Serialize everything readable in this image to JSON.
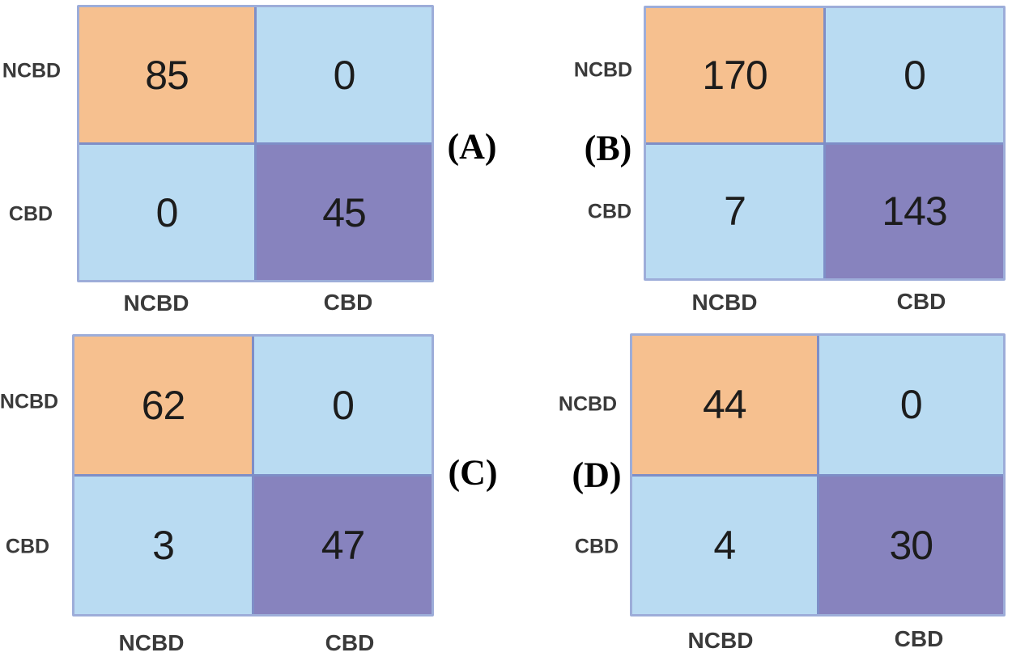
{
  "figure": {
    "colors": {
      "diagonal_top": "#f6c08f",
      "diagonal_bottom": "#8783be",
      "off_diagonal": "#b9dbf2",
      "grid_line": "#7e8ec7",
      "grid_outline": "#9dadd9",
      "value_text": "#1c1c1c",
      "label_text": "#3a3a3a"
    }
  },
  "chart_data": [
    {
      "type": "heatmap",
      "title": "(A)",
      "rows": [
        "NCBD",
        "CBD"
      ],
      "cols": [
        "NCBD",
        "CBD"
      ],
      "values": [
        [
          85,
          0
        ],
        [
          0,
          45
        ]
      ],
      "panel_label_side": "right",
      "legend": "none"
    },
    {
      "type": "heatmap",
      "title": "(B)",
      "rows": [
        "NCBD",
        "CBD"
      ],
      "cols": [
        "NCBD",
        "CBD"
      ],
      "values": [
        [
          170,
          0
        ],
        [
          7,
          143
        ]
      ],
      "panel_label_side": "left",
      "legend": "none"
    },
    {
      "type": "heatmap",
      "title": "(C)",
      "rows": [
        "NCBD",
        "CBD"
      ],
      "cols": [
        "NCBD",
        "CBD"
      ],
      "values": [
        [
          62,
          0
        ],
        [
          3,
          47
        ]
      ],
      "panel_label_side": "right",
      "legend": "none"
    },
    {
      "type": "heatmap",
      "title": "(D)",
      "rows": [
        "NCBD",
        "CBD"
      ],
      "cols": [
        "NCBD",
        "CBD"
      ],
      "values": [
        [
          44,
          0
        ],
        [
          4,
          30
        ]
      ],
      "panel_label_side": "left",
      "legend": "none"
    }
  ]
}
